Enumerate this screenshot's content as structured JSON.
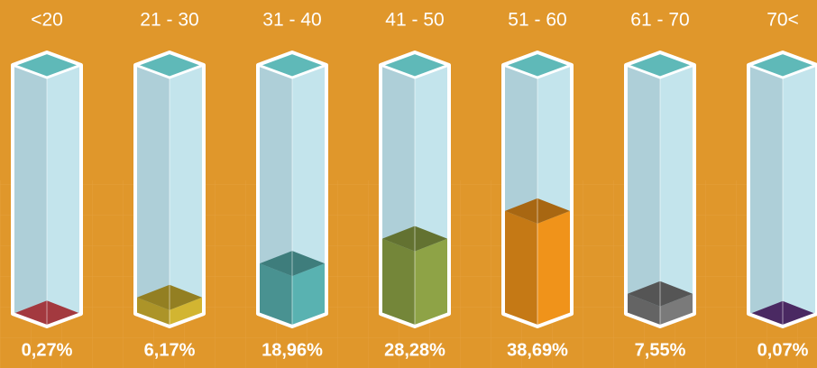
{
  "chart_data": {
    "type": "bar",
    "categories": [
      "<20",
      "21 - 30",
      "31 - 40",
      "41 - 50",
      "51 - 60",
      "61 - 70",
      "70<"
    ],
    "values": [
      0.27,
      6.17,
      18.96,
      28.28,
      38.69,
      7.55,
      0.07
    ],
    "value_labels": [
      "0,27%",
      "6,17%",
      "18,96%",
      "28,28%",
      "38,69%",
      "7,55%",
      "0,07%"
    ],
    "colors": [
      "#e9525a",
      "#d2b531",
      "#59b2b1",
      "#8ea346",
      "#f0931a",
      "#7a7a7a",
      "#6a3a8c"
    ]
  }
}
